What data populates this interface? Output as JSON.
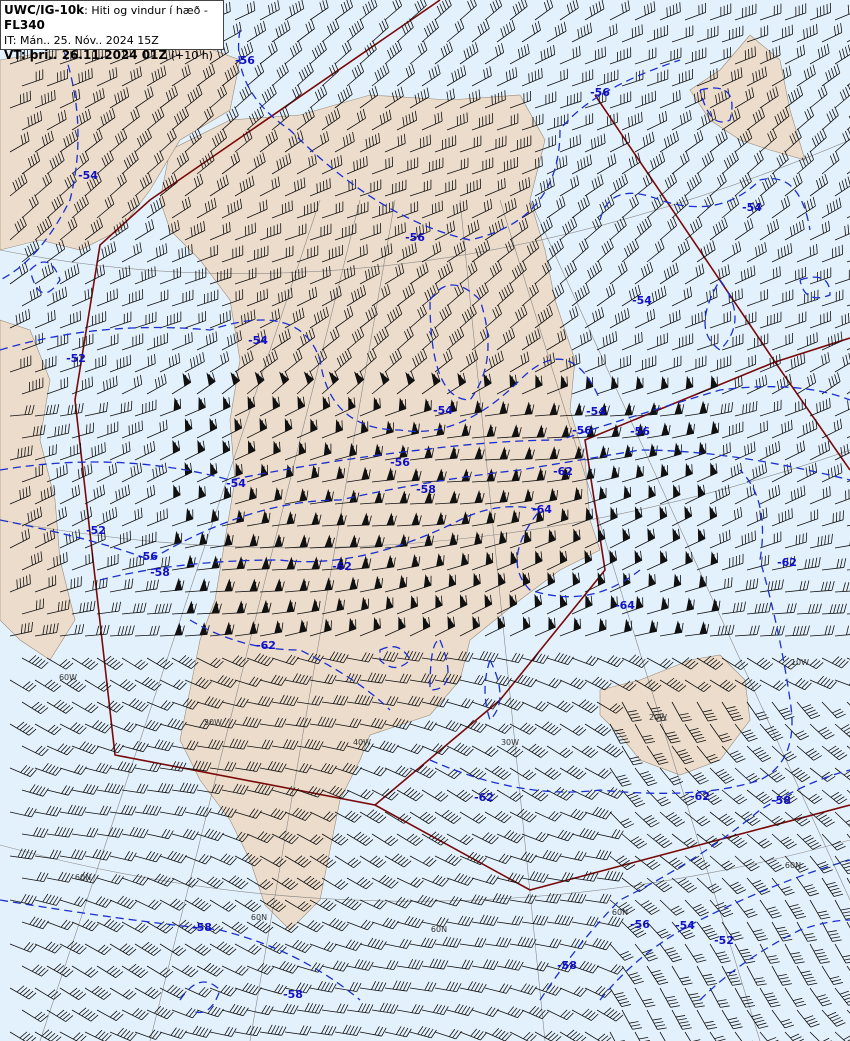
{
  "header": {
    "product": "UWC/IG-10k",
    "description": ": Hiti og vindur í hæð - ",
    "level": "FL340",
    "issue_time": "IT: Mán.. 25. Nóv.. 2024 15Z",
    "valid_label": "VT: þri.. 26.11.2024 01Z",
    "valid_offset": " (+10 h)"
  },
  "colors": {
    "sea": "#e3f1fc",
    "land": "#ecdccb",
    "contour": "#1a2fd0",
    "boundary": "#7a0a0a",
    "grid": "#888888"
  },
  "contour_labels": [
    "-56",
    "-56",
    "-54",
    "-56",
    "-54",
    "-54",
    "-54",
    "-52",
    "-54",
    "-54",
    "-56",
    "-56",
    "-62",
    "-56",
    "-54",
    "-58",
    "-64",
    "-52",
    "-56",
    "-58",
    "-62",
    "-62",
    "-64",
    "-62",
    "-62",
    "-62",
    "-58",
    "-56",
    "-54",
    "-52",
    "-58",
    "-58",
    "-58"
  ],
  "grid_labels": [
    "60N",
    "60N",
    "60N",
    "60N",
    "60N",
    "60W",
    "50W",
    "40W",
    "30W",
    "20W",
    "10W"
  ]
}
